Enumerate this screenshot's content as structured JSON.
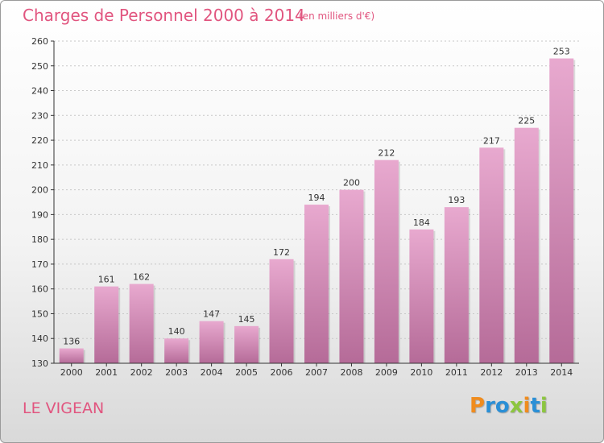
{
  "header": {
    "title": "Charges de Personnel 2000 à 2014",
    "subtitle": "(en milliers d'€)"
  },
  "commune": "LE VIGEAN",
  "logo": {
    "text": "Proxiti",
    "letters": [
      {
        "ch": "P",
        "color": "#f08c1e"
      },
      {
        "ch": "r",
        "color": "#2a8fd6"
      },
      {
        "ch": "o",
        "color": "#2a8fd6"
      },
      {
        "ch": "x",
        "color": "#8cc63f"
      },
      {
        "ch": "i",
        "color": "#f08c1e"
      },
      {
        "ch": "t",
        "color": "#2a8fd6"
      },
      {
        "ch": "i",
        "color": "#8cc63f"
      }
    ]
  },
  "colors": {
    "title": "#e1557f",
    "bar_top": "#e8a9cf",
    "bar_bottom": "#b56b98",
    "axis": "#333333"
  },
  "chart_data": {
    "type": "bar",
    "categories": [
      "2000",
      "2001",
      "2002",
      "2003",
      "2004",
      "2005",
      "2006",
      "2007",
      "2008",
      "2009",
      "2010",
      "2011",
      "2012",
      "2013",
      "2014"
    ],
    "values": [
      136,
      161,
      162,
      140,
      147,
      145,
      172,
      194,
      200,
      212,
      184,
      193,
      217,
      225,
      253
    ],
    "ylim": [
      130,
      260
    ],
    "yticks": [
      130,
      140,
      150,
      160,
      170,
      180,
      190,
      200,
      210,
      220,
      230,
      240,
      250,
      260
    ],
    "grid": true,
    "data_labels": true,
    "xlabel": "",
    "ylabel": ""
  }
}
